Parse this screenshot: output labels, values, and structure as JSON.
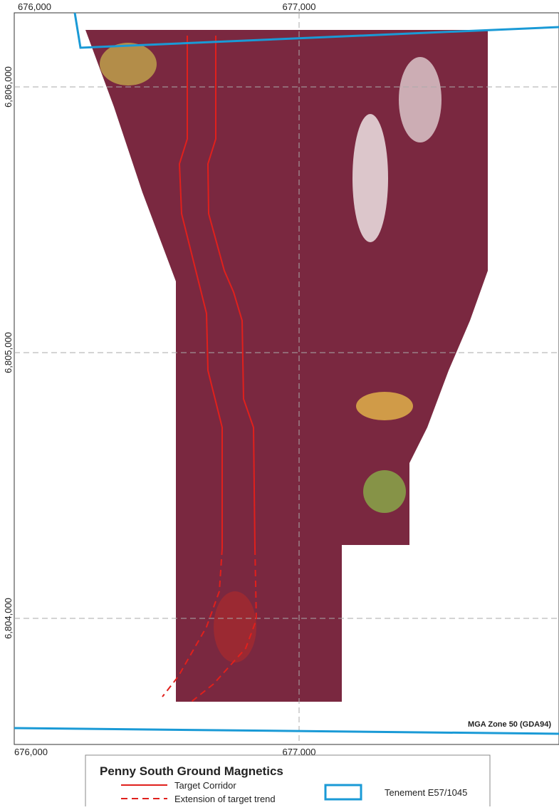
{
  "map": {
    "x_labels_top": [
      "676,000",
      "677,000"
    ],
    "x_labels_bottom": [
      "676,000",
      "677,000"
    ],
    "y_labels": [
      "6,806,000",
      "6,805,000",
      "6,804,000"
    ],
    "projection": "MGA Zone 50 (GDA94)"
  },
  "legend": {
    "title": "Penny South Ground Magnetics",
    "items": [
      "Target Corridor",
      "Extension of target trend",
      "Tenement E57/1045"
    ]
  }
}
